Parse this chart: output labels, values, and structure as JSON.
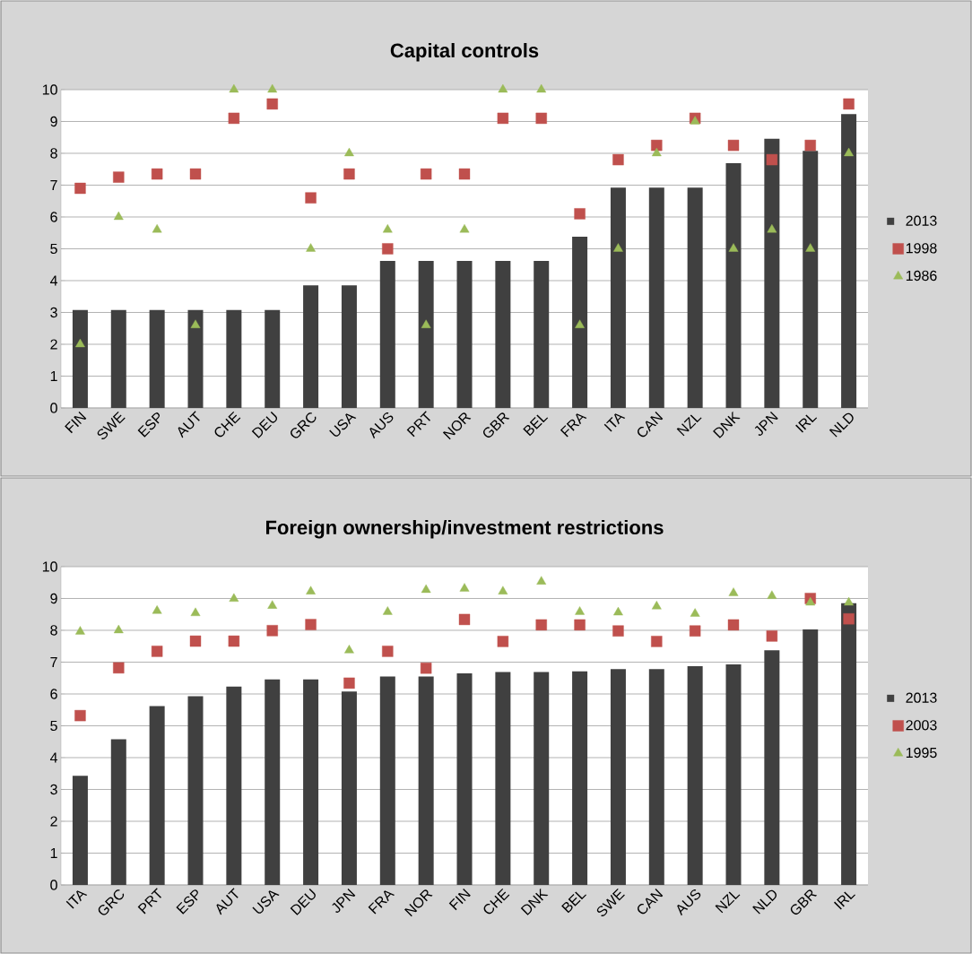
{
  "chart_data": [
    {
      "type": "bar",
      "title": "Capital controls",
      "categories": [
        "FIN",
        "SWE",
        "ESP",
        "AUT",
        "CHE",
        "DEU",
        "GRC",
        "USA",
        "AUS",
        "PRT",
        "NOR",
        "GBR",
        "BEL",
        "FRA",
        "ITA",
        "CAN",
        "NZL",
        "DNK",
        "JPN",
        "IRL",
        "NLD"
      ],
      "series": [
        {
          "name": "2013",
          "color": "#404040",
          "values": [
            3.08,
            3.08,
            3.08,
            3.08,
            3.08,
            3.08,
            3.85,
            3.85,
            4.62,
            4.62,
            4.62,
            4.62,
            4.62,
            5.38,
            6.92,
            6.92,
            6.92,
            7.69,
            8.46,
            8.08,
            9.23
          ]
        },
        {
          "name": "1998",
          "type": "scatter",
          "marker": "square",
          "color": "#c0504d",
          "values": [
            6.9,
            7.25,
            7.35,
            7.35,
            9.1,
            9.55,
            6.6,
            7.35,
            5.0,
            7.35,
            7.35,
            9.1,
            9.1,
            6.1,
            7.8,
            8.25,
            9.1,
            8.25,
            7.8,
            8.25,
            9.55
          ]
        },
        {
          "name": "1986",
          "type": "scatter",
          "marker": "triangle",
          "color": "#9bbb59",
          "values": [
            2.0,
            6.0,
            5.6,
            2.6,
            10.0,
            10.0,
            5.0,
            8.0,
            5.6,
            2.6,
            5.6,
            10.0,
            10.0,
            2.6,
            5.0,
            8.0,
            9.0,
            5.0,
            5.6,
            5.0,
            8.0
          ]
        }
      ],
      "ylim": [
        0,
        10
      ],
      "yticks": [
        0,
        1,
        2,
        3,
        4,
        5,
        6,
        7,
        8,
        9,
        10
      ],
      "grid": "y",
      "legend": "right"
    },
    {
      "type": "bar",
      "title": "Foreign ownership/investment restrictions",
      "categories": [
        "ITA",
        "GRC",
        "PRT",
        "ESP",
        "AUT",
        "USA",
        "DEU",
        "JPN",
        "FRA",
        "NOR",
        "FIN",
        "CHE",
        "DNK",
        "BEL",
        "SWE",
        "CAN",
        "AUS",
        "NZL",
        "NLD",
        "GBR",
        "IRL"
      ],
      "series": [
        {
          "name": "2013",
          "color": "#404040",
          "values": [
            3.43,
            4.58,
            5.62,
            5.93,
            6.23,
            6.46,
            6.46,
            6.08,
            6.55,
            6.55,
            6.65,
            6.69,
            6.69,
            6.71,
            6.78,
            6.78,
            6.87,
            6.93,
            7.37,
            8.03,
            8.85
          ]
        },
        {
          "name": "2003",
          "type": "scatter",
          "marker": "square",
          "color": "#c0504d",
          "values": [
            5.32,
            6.82,
            7.34,
            7.66,
            7.66,
            7.99,
            8.18,
            6.34,
            7.34,
            6.81,
            8.34,
            7.65,
            8.17,
            8.17,
            7.98,
            7.65,
            7.98,
            8.17,
            7.82,
            9.0,
            8.36
          ]
        },
        {
          "name": "1995",
          "type": "scatter",
          "marker": "triangle",
          "color": "#9bbb59",
          "values": [
            7.96,
            8.0,
            8.61,
            8.54,
            8.99,
            8.77,
            9.22,
            7.37,
            8.58,
            9.27,
            9.31,
            9.22,
            9.53,
            8.58,
            8.56,
            8.75,
            8.52,
            9.17,
            9.08,
            8.87,
            8.87
          ]
        }
      ],
      "ylim": [
        0,
        10
      ],
      "yticks": [
        0,
        1,
        2,
        3,
        4,
        5,
        6,
        7,
        8,
        9,
        10
      ],
      "grid": "y",
      "legend": "right"
    }
  ]
}
